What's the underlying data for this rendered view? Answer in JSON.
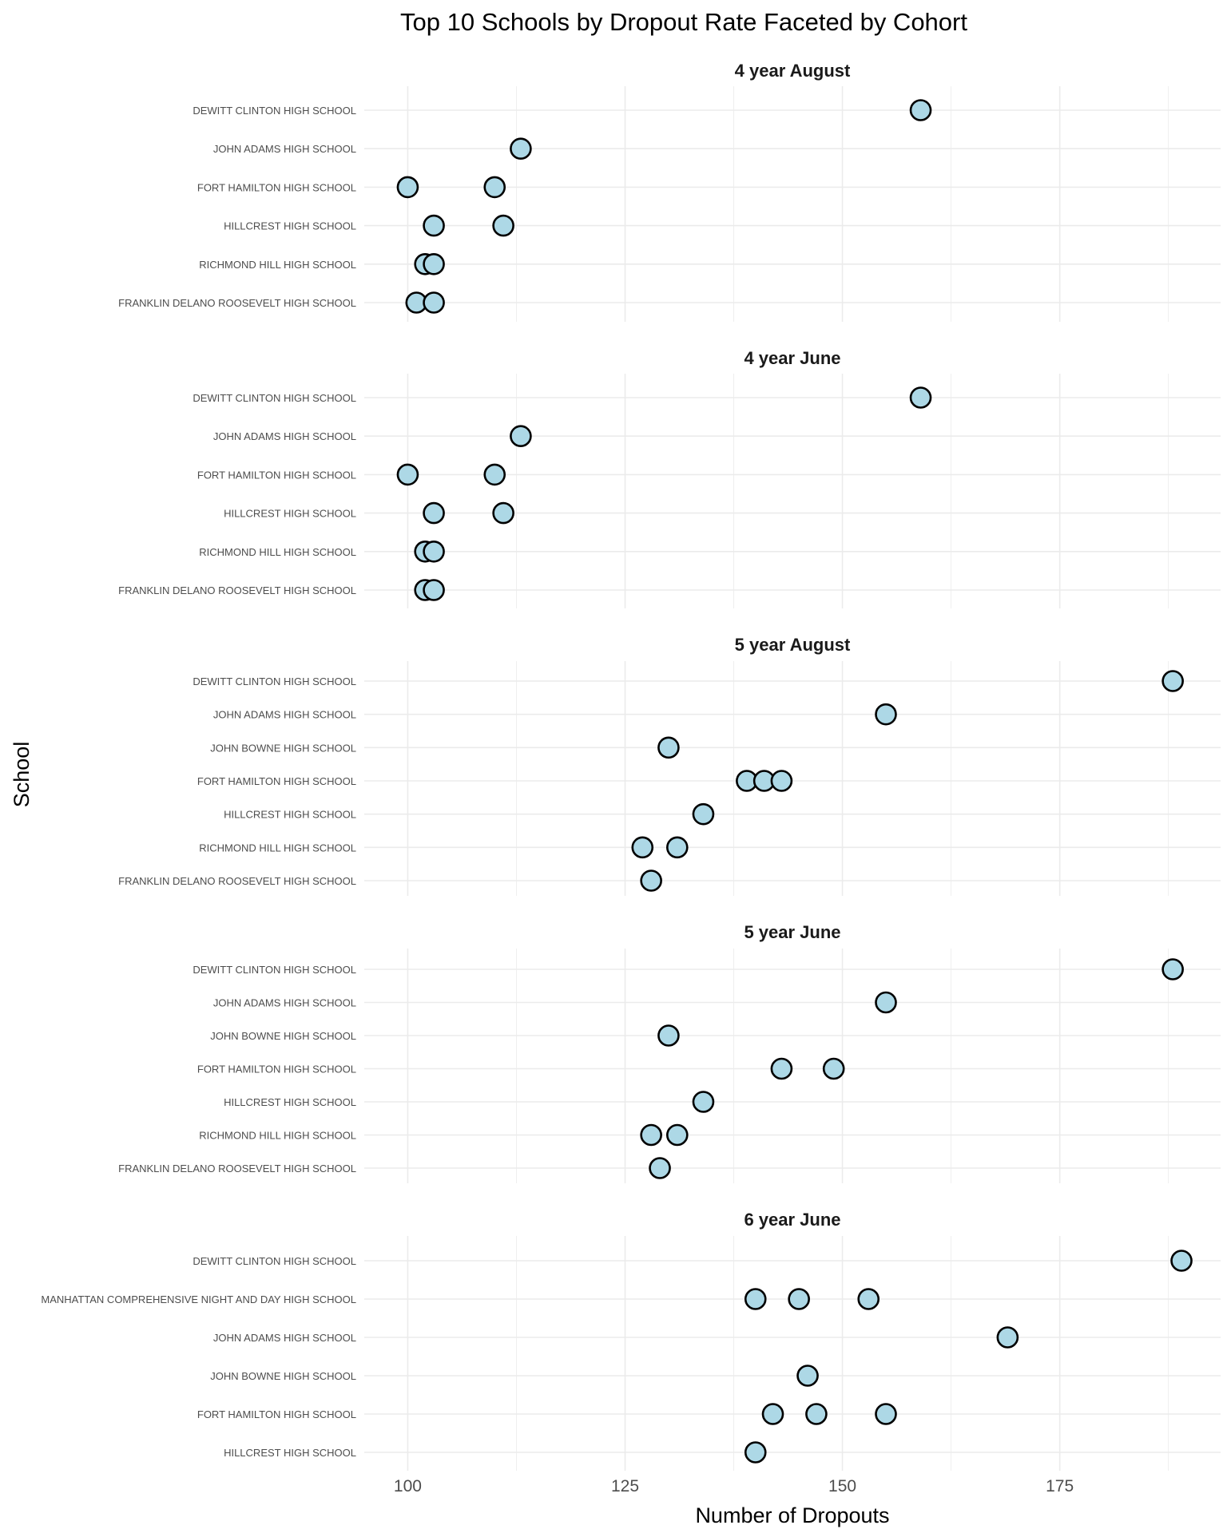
{
  "chart_data": {
    "type": "scatter",
    "title": "Top 10 Schools by Dropout Rate Faceted by Cohort",
    "xlabel": "Number of Dropouts",
    "ylabel": "School",
    "x_ticks": [
      100,
      125,
      150,
      175
    ],
    "xlim": [
      95,
      193.5
    ],
    "grid": true,
    "point_fill": "#add8e6",
    "point_stroke": "#000000",
    "grid_color": "#ebebeb",
    "facets": [
      {
        "label": "4 year August",
        "schools": [
          "DEWITT CLINTON HIGH SCHOOL",
          "JOHN ADAMS HIGH SCHOOL",
          "FORT HAMILTON HIGH SCHOOL",
          "HILLCREST HIGH SCHOOL",
          "RICHMOND HILL HIGH SCHOOL",
          "FRANKLIN DELANO ROOSEVELT HIGH SCHOOL"
        ],
        "points": [
          {
            "school": "DEWITT CLINTON HIGH SCHOOL",
            "x": 159
          },
          {
            "school": "JOHN ADAMS HIGH SCHOOL",
            "x": 113
          },
          {
            "school": "FORT HAMILTON HIGH SCHOOL",
            "x": 100
          },
          {
            "school": "FORT HAMILTON HIGH SCHOOL",
            "x": 110
          },
          {
            "school": "HILLCREST HIGH SCHOOL",
            "x": 103
          },
          {
            "school": "HILLCREST HIGH SCHOOL",
            "x": 111
          },
          {
            "school": "RICHMOND HILL HIGH SCHOOL",
            "x": 102
          },
          {
            "school": "RICHMOND HILL HIGH SCHOOL",
            "x": 103
          },
          {
            "school": "FRANKLIN DELANO ROOSEVELT HIGH SCHOOL",
            "x": 101
          },
          {
            "school": "FRANKLIN DELANO ROOSEVELT HIGH SCHOOL",
            "x": 103
          }
        ]
      },
      {
        "label": "4 year June",
        "schools": [
          "DEWITT CLINTON HIGH SCHOOL",
          "JOHN ADAMS HIGH SCHOOL",
          "FORT HAMILTON HIGH SCHOOL",
          "HILLCREST HIGH SCHOOL",
          "RICHMOND HILL HIGH SCHOOL",
          "FRANKLIN DELANO ROOSEVELT HIGH SCHOOL"
        ],
        "points": [
          {
            "school": "DEWITT CLINTON HIGH SCHOOL",
            "x": 159
          },
          {
            "school": "JOHN ADAMS HIGH SCHOOL",
            "x": 113
          },
          {
            "school": "FORT HAMILTON HIGH SCHOOL",
            "x": 100
          },
          {
            "school": "FORT HAMILTON HIGH SCHOOL",
            "x": 110
          },
          {
            "school": "HILLCREST HIGH SCHOOL",
            "x": 103
          },
          {
            "school": "HILLCREST HIGH SCHOOL",
            "x": 111
          },
          {
            "school": "RICHMOND HILL HIGH SCHOOL",
            "x": 102
          },
          {
            "school": "RICHMOND HILL HIGH SCHOOL",
            "x": 103
          },
          {
            "school": "FRANKLIN DELANO ROOSEVELT HIGH SCHOOL",
            "x": 102
          },
          {
            "school": "FRANKLIN DELANO ROOSEVELT HIGH SCHOOL",
            "x": 103
          }
        ]
      },
      {
        "label": "5 year August",
        "schools": [
          "DEWITT CLINTON HIGH SCHOOL",
          "JOHN ADAMS HIGH SCHOOL",
          "JOHN BOWNE HIGH SCHOOL",
          "FORT HAMILTON HIGH SCHOOL",
          "HILLCREST HIGH SCHOOL",
          "RICHMOND HILL HIGH SCHOOL",
          "FRANKLIN DELANO ROOSEVELT HIGH SCHOOL"
        ],
        "points": [
          {
            "school": "DEWITT CLINTON HIGH SCHOOL",
            "x": 188
          },
          {
            "school": "JOHN ADAMS HIGH SCHOOL",
            "x": 155
          },
          {
            "school": "JOHN BOWNE HIGH SCHOOL",
            "x": 130
          },
          {
            "school": "FORT HAMILTON HIGH SCHOOL",
            "x": 139
          },
          {
            "school": "FORT HAMILTON HIGH SCHOOL",
            "x": 141
          },
          {
            "school": "FORT HAMILTON HIGH SCHOOL",
            "x": 143
          },
          {
            "school": "HILLCREST HIGH SCHOOL",
            "x": 134
          },
          {
            "school": "RICHMOND HILL HIGH SCHOOL",
            "x": 127
          },
          {
            "school": "RICHMOND HILL HIGH SCHOOL",
            "x": 131
          },
          {
            "school": "FRANKLIN DELANO ROOSEVELT HIGH SCHOOL",
            "x": 128
          }
        ]
      },
      {
        "label": "5 year June",
        "schools": [
          "DEWITT CLINTON HIGH SCHOOL",
          "JOHN ADAMS HIGH SCHOOL",
          "JOHN BOWNE HIGH SCHOOL",
          "FORT HAMILTON HIGH SCHOOL",
          "HILLCREST HIGH SCHOOL",
          "RICHMOND HILL HIGH SCHOOL",
          "FRANKLIN DELANO ROOSEVELT HIGH SCHOOL"
        ],
        "points": [
          {
            "school": "DEWITT CLINTON HIGH SCHOOL",
            "x": 188
          },
          {
            "school": "JOHN ADAMS HIGH SCHOOL",
            "x": 155
          },
          {
            "school": "JOHN BOWNE HIGH SCHOOL",
            "x": 130
          },
          {
            "school": "FORT HAMILTON HIGH SCHOOL",
            "x": 143
          },
          {
            "school": "FORT HAMILTON HIGH SCHOOL",
            "x": 149
          },
          {
            "school": "HILLCREST HIGH SCHOOL",
            "x": 134
          },
          {
            "school": "RICHMOND HILL HIGH SCHOOL",
            "x": 128
          },
          {
            "school": "RICHMOND HILL HIGH SCHOOL",
            "x": 131
          },
          {
            "school": "FRANKLIN DELANO ROOSEVELT HIGH SCHOOL",
            "x": 129
          }
        ]
      },
      {
        "label": "6 year June",
        "schools": [
          "DEWITT CLINTON HIGH SCHOOL",
          "MANHATTAN COMPREHENSIVE NIGHT AND DAY HIGH SCHOOL",
          "JOHN ADAMS HIGH SCHOOL",
          "JOHN BOWNE HIGH SCHOOL",
          "FORT HAMILTON HIGH SCHOOL",
          "HILLCREST HIGH SCHOOL"
        ],
        "points": [
          {
            "school": "DEWITT CLINTON HIGH SCHOOL",
            "x": 189
          },
          {
            "school": "MANHATTAN COMPREHENSIVE NIGHT AND DAY HIGH SCHOOL",
            "x": 140
          },
          {
            "school": "MANHATTAN COMPREHENSIVE NIGHT AND DAY HIGH SCHOOL",
            "x": 145
          },
          {
            "school": "MANHATTAN COMPREHENSIVE NIGHT AND DAY HIGH SCHOOL",
            "x": 153
          },
          {
            "school": "JOHN ADAMS HIGH SCHOOL",
            "x": 169
          },
          {
            "school": "JOHN BOWNE HIGH SCHOOL",
            "x": 146
          },
          {
            "school": "FORT HAMILTON HIGH SCHOOL",
            "x": 142
          },
          {
            "school": "FORT HAMILTON HIGH SCHOOL",
            "x": 147
          },
          {
            "school": "FORT HAMILTON HIGH SCHOOL",
            "x": 155
          },
          {
            "school": "HILLCREST HIGH SCHOOL",
            "x": 140
          }
        ]
      }
    ]
  }
}
